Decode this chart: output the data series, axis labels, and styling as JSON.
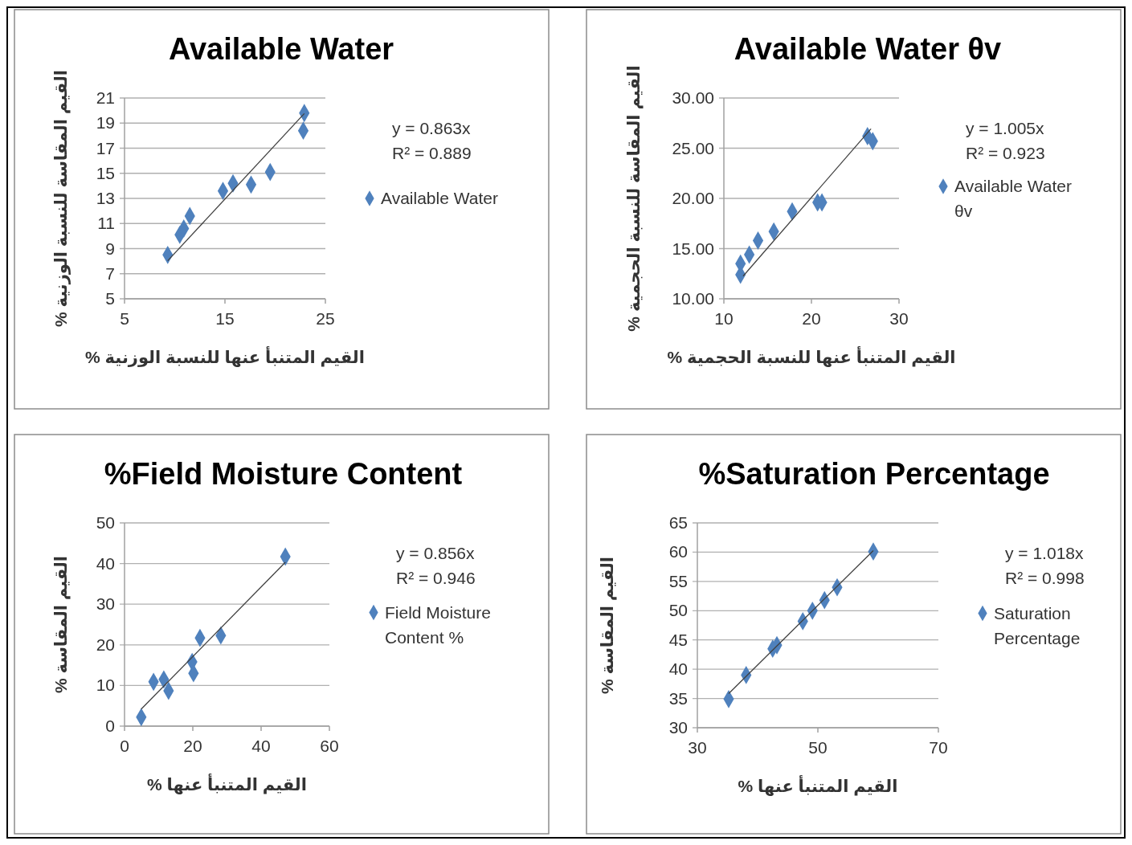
{
  "chart_data": [
    {
      "type": "scatter",
      "title": "Available Water",
      "xlabel": "القيم المتنبأ عنها للنسبة الوزنية %",
      "ylabel": "القيم المقاسة للنسبة الوزنية %",
      "xlim": [
        5,
        25
      ],
      "xticks": [
        5,
        15,
        25
      ],
      "ylim": [
        5,
        21
      ],
      "yticks": [
        5,
        7,
        9,
        11,
        13,
        15,
        17,
        19,
        21
      ],
      "grid": "y",
      "legend": "right",
      "marker": "diamond",
      "annotations": [
        "y = 0.863x",
        "R² = 0.889"
      ],
      "series": [
        {
          "name": "Available Water",
          "color": "#4f81bd",
          "x": [
            9.3,
            10.5,
            10.9,
            11.5,
            14.8,
            15.8,
            17.6,
            19.5,
            22.8,
            22.9
          ],
          "values": [
            8.5,
            10.1,
            10.6,
            11.6,
            13.6,
            14.2,
            14.1,
            15.1,
            18.4,
            19.8
          ]
        },
        {
          "type": "line",
          "color": "#404040",
          "marker": "none",
          "x": [
            9.3,
            22.9
          ],
          "values": [
            8.03,
            19.76
          ]
        }
      ]
    },
    {
      "type": "scatter",
      "title": "Available Water θv",
      "xlabel": "القيم المتنبأ عنها للنسبة الحجمية %",
      "ylabel": "القيم المقاسة للنسبة الحجمية %",
      "xlim": [
        10,
        30
      ],
      "xticks": [
        10,
        20,
        30
      ],
      "ylim": [
        10,
        30
      ],
      "yticks": [
        {
          "value": 10,
          "label": "10.00"
        },
        {
          "value": 15,
          "label": "15.00"
        },
        {
          "value": 20,
          "label": "20.00"
        },
        {
          "value": 25,
          "label": "25.00"
        },
        {
          "value": 30,
          "label": "30.00"
        }
      ],
      "grid": "y",
      "legend": "right",
      "marker": "diamond",
      "annotations": [
        "y = 1.005x",
        "R² = 0.923"
      ],
      "series": [
        {
          "name": "Available Water θv",
          "color": "#4f81bd",
          "x": [
            11.9,
            11.9,
            12.9,
            13.9,
            15.7,
            17.8,
            20.7,
            21.2,
            26.4,
            27.0
          ],
          "values": [
            12.4,
            13.5,
            14.4,
            15.8,
            16.7,
            18.7,
            19.6,
            19.6,
            26.2,
            25.7
          ]
        },
        {
          "type": "line",
          "color": "#404040",
          "marker": "none",
          "x": [
            12.2,
            26.8
          ],
          "values": [
            12.26,
            26.93
          ]
        }
      ]
    },
    {
      "type": "scatter",
      "title": "%Field Moisture Content",
      "xlabel": "القيم المتنبأ عنها %",
      "ylabel": "القيم المقاسة %",
      "xlim": [
        0,
        60
      ],
      "xticks": [
        0,
        20,
        40,
        60
      ],
      "ylim": [
        0,
        50
      ],
      "yticks": [
        0,
        10,
        20,
        30,
        40,
        50
      ],
      "grid": "y",
      "legend": "right",
      "marker": "diamond",
      "annotations": [
        "y = 0.856x",
        "R² = 0.946"
      ],
      "series": [
        {
          "name": "Field Moisture Content %",
          "color": "#4f81bd",
          "x": [
            4.9,
            8.5,
            11.5,
            12.9,
            19.8,
            20.2,
            22.1,
            28.2,
            47.1
          ],
          "values": [
            2.2,
            10.9,
            11.5,
            8.7,
            15.8,
            13.0,
            21.7,
            22.3,
            41.7
          ]
        },
        {
          "type": "line",
          "color": "#404040",
          "marker": "none",
          "x": [
            4.9,
            47.1
          ],
          "values": [
            4.19,
            40.32
          ]
        }
      ]
    },
    {
      "type": "scatter",
      "title": "%Saturation Percentage",
      "xlabel": "القيم المتنبأ عنها %",
      "ylabel": "القيم المقاسة %",
      "xlim": [
        30,
        70
      ],
      "xticks": [
        30,
        50,
        70
      ],
      "ylim": [
        30,
        65
      ],
      "yticks": [
        30,
        35,
        40,
        45,
        50,
        55,
        60,
        65
      ],
      "grid": "y",
      "legend": "right",
      "marker": "diamond",
      "annotations": [
        "y = 1.018x",
        "R² = 0.998"
      ],
      "series": [
        {
          "name": "Saturation Percentage",
          "color": "#4f81bd",
          "x": [
            35.2,
            38.1,
            42.5,
            43.2,
            47.5,
            49.1,
            51.1,
            53.2,
            59.2
          ],
          "values": [
            34.9,
            39.0,
            43.5,
            44.1,
            48.2,
            50.0,
            51.8,
            54.0,
            60.1
          ]
        },
        {
          "type": "line",
          "color": "#404040",
          "marker": "none",
          "x": [
            35.2,
            59.2
          ],
          "values": [
            35.83,
            60.27
          ]
        }
      ]
    }
  ]
}
